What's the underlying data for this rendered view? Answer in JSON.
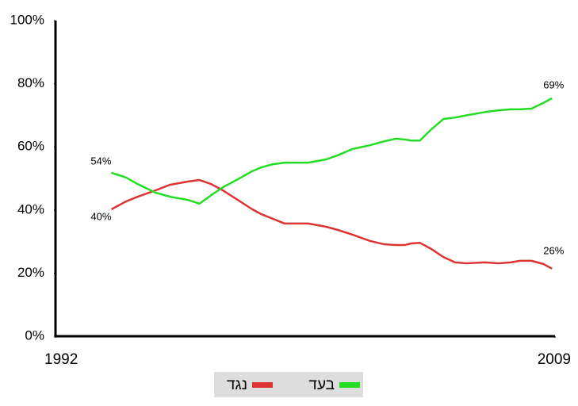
{
  "chart_data": {
    "type": "line",
    "x": [
      1993.9,
      1994.4,
      1994.8,
      1995.4,
      1995.9,
      1996.5,
      1996.9,
      1997.3,
      1997.7,
      1998.2,
      1998.7,
      1999.0,
      1999.4,
      1999.8,
      2000.2,
      2000.6,
      2001.2,
      2001.6,
      2002.1,
      2002.7,
      2003.2,
      2003.6,
      2003.9,
      2004.1,
      2004.4,
      2004.8,
      2005.2,
      2005.6,
      2006.0,
      2006.6,
      2007.1,
      2007.5,
      2007.8,
      2008.2,
      2008.6,
      2008.9
    ],
    "series": [
      {
        "name": "נגד",
        "color": "#dd3333",
        "values": [
          40.2,
          42.7,
          44.2,
          46.2,
          48,
          49,
          49.5,
          48.2,
          46.2,
          43.2,
          40.2,
          38.7,
          37.2,
          35.7,
          35.7,
          35.7,
          34.7,
          33.7,
          32.2,
          30.2,
          29.1,
          28.9,
          28.9,
          29.4,
          29.6,
          27.6,
          25.1,
          23.4,
          23.1,
          23.4,
          23.1,
          23.4,
          23.9,
          23.9,
          22.9,
          21.4
        ]
      },
      {
        "name": "בעד",
        "color": "#22dd22",
        "values": [
          51.8,
          50.3,
          48.2,
          45.5,
          44.2,
          43.2,
          42,
          44.7,
          47.2,
          49.7,
          52.3,
          53.5,
          54.5,
          55,
          55,
          55,
          56,
          57.3,
          59.3,
          60.5,
          61.8,
          62.6,
          62.3,
          62,
          62,
          65.6,
          68.8,
          69.3,
          70,
          71,
          71.6,
          71.9,
          71.9,
          72.1,
          73.9,
          75.4
        ]
      }
    ],
    "xlim": [
      1992,
      2009
    ],
    "xticks": [
      1992,
      2009
    ],
    "ylim": [
      0,
      100
    ],
    "yticks": [
      {
        "value": 0,
        "label": "0%"
      },
      {
        "value": 20,
        "label": "20%"
      },
      {
        "value": 40,
        "label": "40%"
      },
      {
        "value": 60,
        "label": "60%"
      },
      {
        "value": 80,
        "label": "80%"
      },
      {
        "value": 100,
        "label": "100%"
      }
    ],
    "annotations": [
      "54%",
      "40%",
      "69%",
      "26%"
    ],
    "grid": false
  }
}
